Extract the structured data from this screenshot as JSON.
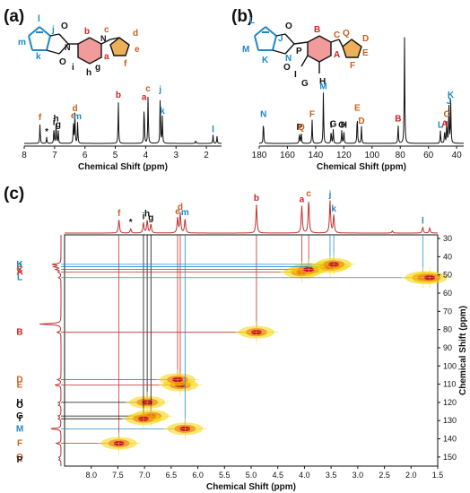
{
  "colors": {
    "red": "#d42020",
    "blue": "#1f86c8",
    "orange": "#c8601a",
    "black": "#111111",
    "peak_line": "#c0312f",
    "guide_blue": "#2a8fc9",
    "guide_red": "#c0312f",
    "guide_black": "#111111",
    "ring_red": "#f08a8a",
    "ring_orange": "#e8a23c",
    "contour_outer": "#f5d400",
    "contour_mid": "#f08b1f",
    "contour_inner": "#c0102a"
  },
  "panels": {
    "a": {
      "label": "(a)"
    },
    "b": {
      "label": "(b)"
    },
    "c": {
      "label": "(c)"
    }
  },
  "chart_data": [
    {
      "id": "a",
      "type": "line",
      "xlabel": "Chemical Shift (ppm)",
      "xlim": [
        8.0,
        1.5
      ],
      "xticks": [
        "8",
        "7",
        "6",
        "5",
        "4",
        "3",
        "2"
      ],
      "peaks": [
        {
          "ppm": 7.48,
          "h": 0.38,
          "label": "f",
          "color": "orange"
        },
        {
          "ppm": 7.26,
          "h": 0.12,
          "label": "*",
          "color": "black"
        },
        {
          "ppm": 7.02,
          "h": 0.29,
          "label": "i",
          "color": "black"
        },
        {
          "ppm": 6.95,
          "h": 0.36,
          "label": "h",
          "color": "black"
        },
        {
          "ppm": 6.88,
          "h": 0.25,
          "label": "g",
          "color": "black"
        },
        {
          "ppm": 6.38,
          "h": 0.42,
          "label": "e",
          "color": "orange"
        },
        {
          "ppm": 6.33,
          "h": 0.55,
          "label": "d",
          "color": "orange"
        },
        {
          "ppm": 6.24,
          "h": 0.4,
          "label": "m",
          "color": "blue"
        },
        {
          "ppm": 4.9,
          "h": 0.8,
          "label": "b",
          "color": "red"
        },
        {
          "ppm": 4.05,
          "h": 0.76,
          "label": "a",
          "color": "red"
        },
        {
          "ppm": 3.92,
          "h": 0.92,
          "label": "c",
          "color": "orange"
        },
        {
          "ppm": 3.52,
          "h": 0.9,
          "label": "j",
          "color": "blue"
        },
        {
          "ppm": 3.45,
          "h": 0.5,
          "label": "k",
          "color": "blue"
        },
        {
          "ppm": 2.35,
          "h": 0.06,
          "label": "",
          "color": "black"
        },
        {
          "ppm": 1.78,
          "h": 0.16,
          "label": "l",
          "color": "blue"
        },
        {
          "ppm": 1.65,
          "h": 0.14,
          "label": "",
          "color": "black"
        }
      ]
    },
    {
      "id": "b",
      "type": "line",
      "xlabel": "Chemical Shift (ppm)",
      "xlim": [
        180,
        35
      ],
      "xticks": [
        "180",
        "160",
        "140",
        "120",
        "100",
        "80",
        "60",
        "40"
      ],
      "peaks": [
        {
          "ppm": 177.0,
          "h": 0.22,
          "label": "N",
          "color": "blue"
        },
        {
          "ppm": 151.5,
          "h": 0.1,
          "label": "P",
          "color": "black"
        },
        {
          "ppm": 150.2,
          "h": 0.1,
          "label": "Q",
          "color": "orange"
        },
        {
          "ppm": 142.5,
          "h": 0.22,
          "label": "F",
          "color": "orange"
        },
        {
          "ppm": 134.5,
          "h": 0.48,
          "label": "M",
          "color": "blue"
        },
        {
          "ppm": 129.0,
          "h": 0.12,
          "label": "I",
          "color": "black"
        },
        {
          "ppm": 127.5,
          "h": 0.13,
          "label": "G",
          "color": "black"
        },
        {
          "ppm": 121.5,
          "h": 0.12,
          "label": "O",
          "color": "black"
        },
        {
          "ppm": 120.0,
          "h": 0.12,
          "label": "H",
          "color": "black"
        },
        {
          "ppm": 110.5,
          "h": 0.28,
          "label": "E",
          "color": "orange"
        },
        {
          "ppm": 107.5,
          "h": 0.16,
          "label": "D",
          "color": "orange"
        },
        {
          "ppm": 81.5,
          "h": 0.18,
          "label": "B",
          "color": "red"
        },
        {
          "ppm": 77.0,
          "h": 1.0,
          "label": "",
          "color": "black"
        },
        {
          "ppm": 51.5,
          "h": 0.12,
          "label": "L",
          "color": "blue"
        },
        {
          "ppm": 48.5,
          "h": 0.13,
          "label": "A",
          "color": "red"
        },
        {
          "ppm": 47.0,
          "h": 0.22,
          "label": "C",
          "color": "orange"
        },
        {
          "ppm": 45.5,
          "h": 0.34,
          "label": "J",
          "color": "blue"
        },
        {
          "ppm": 44.2,
          "h": 0.4,
          "label": "K",
          "color": "blue"
        }
      ]
    },
    {
      "id": "c",
      "type": "heatmap",
      "xlabel": "Chemical Shift (ppm)",
      "ylabel": "Chemical Shift (ppm)",
      "xlim": [
        8.5,
        1.5
      ],
      "ylim": [
        28,
        155
      ],
      "xticks": [
        "8.0",
        "7.5",
        "7.0",
        "6.5",
        "6.0",
        "5.5",
        "5.0",
        "4.5",
        "4.0",
        "3.5",
        "3.0",
        "2.5",
        "2.0",
        "1.5"
      ],
      "yticks": [
        "30",
        "40",
        "50",
        "60",
        "70",
        "80",
        "90",
        "100",
        "110",
        "120",
        "130",
        "140",
        "150"
      ],
      "top_labels": [
        {
          "ppm": 7.48,
          "label": "f",
          "color": "orange"
        },
        {
          "ppm": 7.26,
          "label": "*",
          "color": "black"
        },
        {
          "ppm": 7.02,
          "label": "i",
          "color": "black"
        },
        {
          "ppm": 6.95,
          "label": "h",
          "color": "black"
        },
        {
          "ppm": 6.88,
          "label": "g",
          "color": "black"
        },
        {
          "ppm": 6.38,
          "label": "e",
          "color": "orange"
        },
        {
          "ppm": 6.33,
          "label": "d",
          "color": "orange"
        },
        {
          "ppm": 6.24,
          "label": "m",
          "color": "blue"
        },
        {
          "ppm": 4.9,
          "label": "b",
          "color": "red"
        },
        {
          "ppm": 4.05,
          "label": "a",
          "color": "red"
        },
        {
          "ppm": 3.92,
          "label": "c",
          "color": "orange"
        },
        {
          "ppm": 3.52,
          "label": "j",
          "color": "blue"
        },
        {
          "ppm": 3.45,
          "label": "k",
          "color": "blue"
        },
        {
          "ppm": 1.78,
          "label": "l",
          "color": "blue"
        }
      ],
      "side_labels": [
        {
          "ppm": 44.2,
          "label": "K",
          "color": "blue"
        },
        {
          "ppm": 45.5,
          "label": "J",
          "color": "blue"
        },
        {
          "ppm": 47.0,
          "label": "C",
          "color": "orange"
        },
        {
          "ppm": 48.5,
          "label": "A",
          "color": "red"
        },
        {
          "ppm": 51.5,
          "label": "L",
          "color": "blue"
        },
        {
          "ppm": 81.5,
          "label": "B",
          "color": "red"
        },
        {
          "ppm": 107.5,
          "label": "D",
          "color": "orange"
        },
        {
          "ppm": 110.5,
          "label": "E",
          "color": "orange"
        },
        {
          "ppm": 120.0,
          "label": "H",
          "color": "black"
        },
        {
          "ppm": 121.5,
          "label": "O",
          "color": "black"
        },
        {
          "ppm": 127.5,
          "label": "G",
          "color": "black"
        },
        {
          "ppm": 129.0,
          "label": "I",
          "color": "black"
        },
        {
          "ppm": 134.5,
          "label": "M",
          "color": "blue"
        },
        {
          "ppm": 142.5,
          "label": "F",
          "color": "orange"
        },
        {
          "ppm": 150.2,
          "label": "Q",
          "color": "orange"
        },
        {
          "ppm": 151.5,
          "label": "P",
          "color": "black"
        }
      ],
      "correlations": [
        {
          "h": 7.48,
          "c": 142.5,
          "guide": "orange"
        },
        {
          "h": 6.95,
          "c": 120.0,
          "guide": "black"
        },
        {
          "h": 6.88,
          "c": 127.5,
          "guide": "black"
        },
        {
          "h": 7.02,
          "c": 129.0,
          "guide": "black"
        },
        {
          "h": 6.33,
          "c": 110.5,
          "guide": "orange"
        },
        {
          "h": 6.38,
          "c": 107.5,
          "guide": "orange"
        },
        {
          "h": 6.24,
          "c": 134.5,
          "guide": "blue"
        },
        {
          "h": 4.9,
          "c": 81.5,
          "guide": "red"
        },
        {
          "h": 4.05,
          "c": 48.5,
          "guide": "red"
        },
        {
          "h": 3.92,
          "c": 47.0,
          "guide": "orange"
        },
        {
          "h": 3.52,
          "c": 45.5,
          "guide": "blue"
        },
        {
          "h": 3.45,
          "c": 44.2,
          "guide": "blue"
        },
        {
          "h": 1.78,
          "c": 51.5,
          "guide": "blue"
        },
        {
          "h": 1.65,
          "c": 51.5,
          "guide": "none"
        }
      ]
    }
  ],
  "molecule_a": {
    "atoms": [
      {
        "t": "l",
        "color": "blue"
      },
      {
        "t": "j",
        "color": "blue"
      },
      {
        "t": "m",
        "color": "blue"
      },
      {
        "t": "k",
        "color": "blue"
      },
      {
        "t": "O",
        "color": "black"
      },
      {
        "t": "O",
        "color": "black"
      },
      {
        "t": "N",
        "color": "black"
      },
      {
        "t": "b",
        "color": "red"
      },
      {
        "t": "N",
        "color": "black"
      },
      {
        "t": "c",
        "color": "orange"
      },
      {
        "t": "d",
        "color": "orange"
      },
      {
        "t": "e",
        "color": "orange"
      },
      {
        "t": "a",
        "color": "red"
      },
      {
        "t": "i",
        "color": "black"
      },
      {
        "t": "h",
        "color": "black"
      },
      {
        "t": "g",
        "color": "black"
      },
      {
        "t": "f",
        "color": "orange"
      }
    ]
  },
  "molecule_b": {
    "atoms": [
      {
        "t": "L",
        "color": "blue"
      },
      {
        "t": "J",
        "color": "blue"
      },
      {
        "t": "M",
        "color": "blue"
      },
      {
        "t": "K",
        "color": "blue"
      },
      {
        "t": "N",
        "color": "blue"
      },
      {
        "t": "O",
        "color": "black"
      },
      {
        "t": "O",
        "color": "black"
      },
      {
        "t": "B",
        "color": "red"
      },
      {
        "t": "C",
        "color": "orange"
      },
      {
        "t": "Q",
        "color": "orange"
      },
      {
        "t": "D",
        "color": "orange"
      },
      {
        "t": "E",
        "color": "orange"
      },
      {
        "t": "P",
        "color": "black"
      },
      {
        "t": "A",
        "color": "red"
      },
      {
        "t": "F",
        "color": "orange"
      },
      {
        "t": "I",
        "color": "black"
      },
      {
        "t": "G",
        "color": "black"
      },
      {
        "t": "H",
        "color": "black"
      }
    ]
  }
}
